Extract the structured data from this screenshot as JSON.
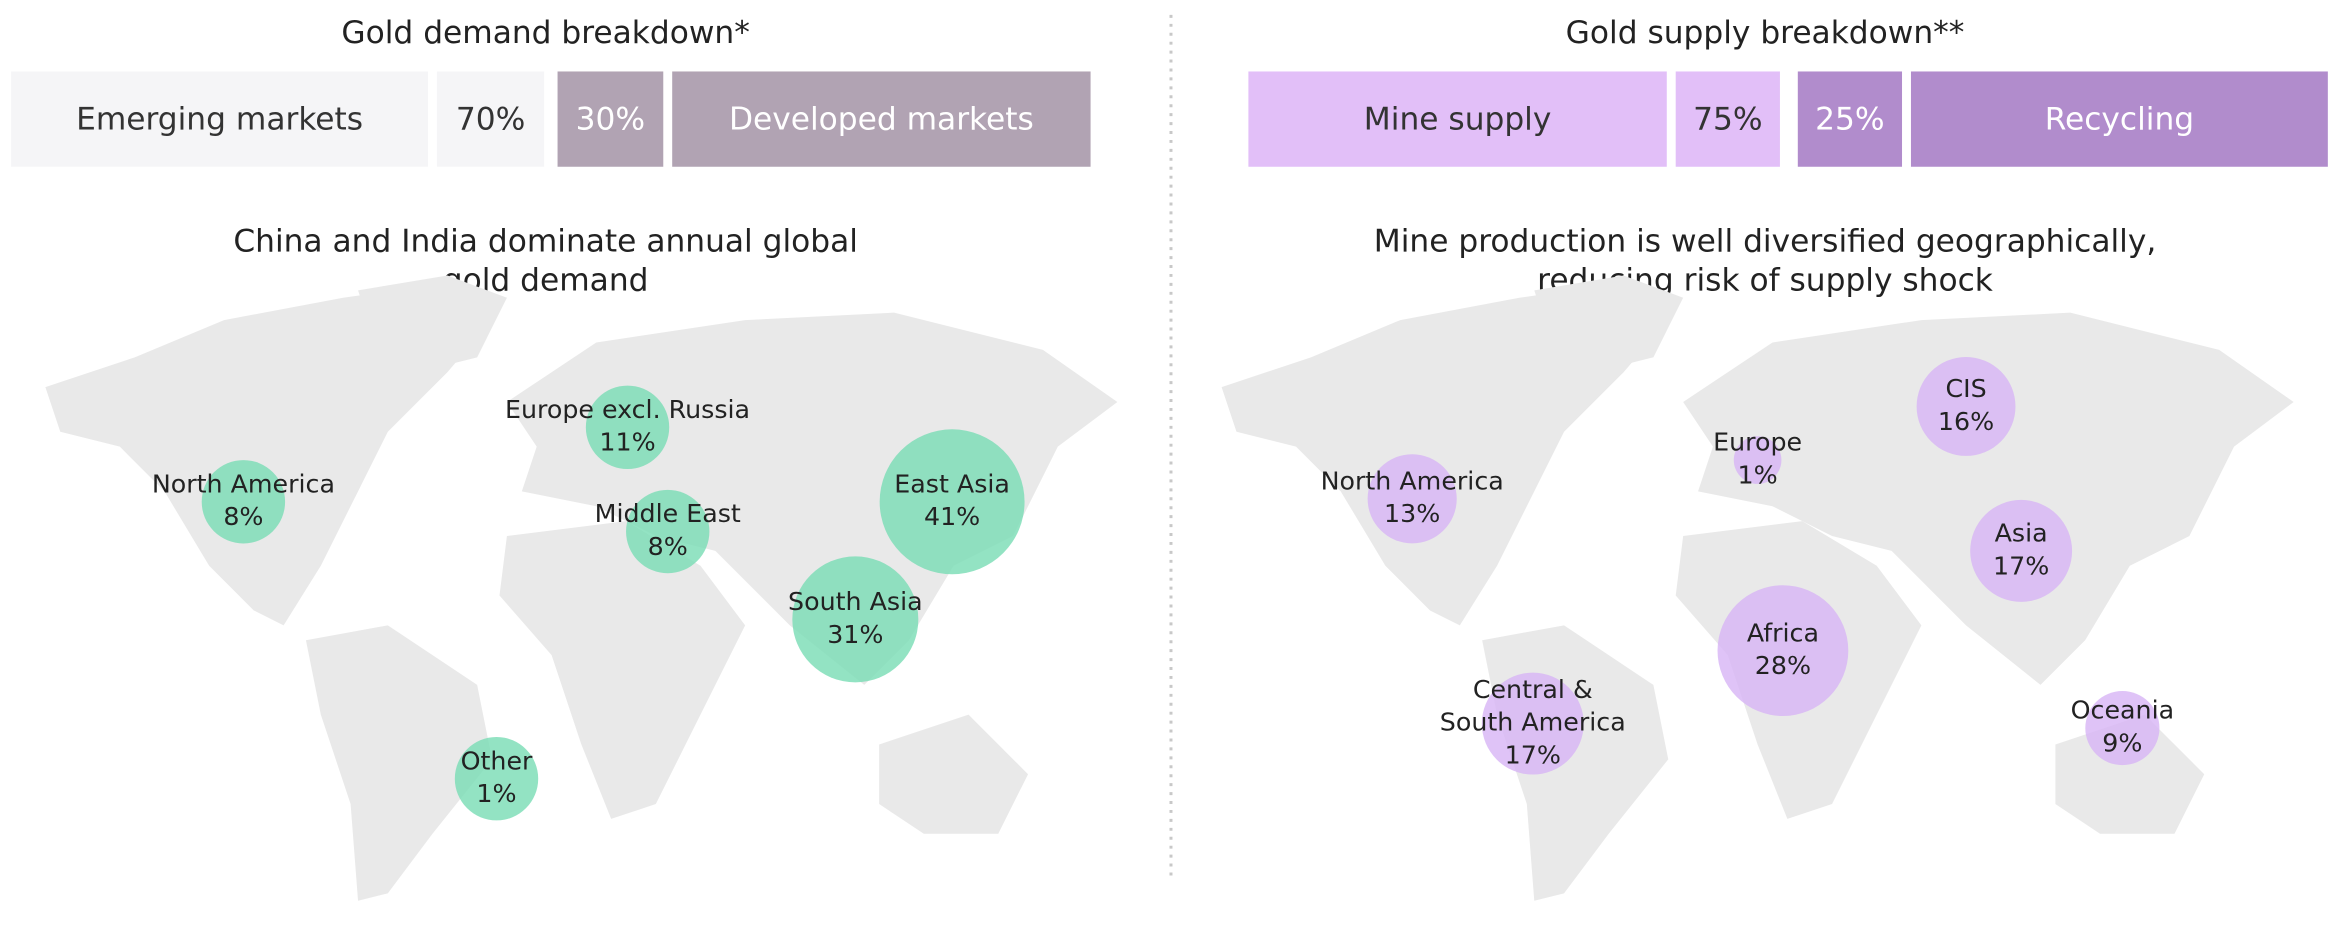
{
  "demand": {
    "title": "Gold demand breakdown*",
    "bar": [
      {
        "label": "Emerging markets",
        "share": "70%"
      },
      {
        "label": "Developed markets",
        "share": "30%"
      }
    ],
    "map_title": "China and India dominate annual global gold demand",
    "regions": [
      {
        "name": "North America",
        "value": 8,
        "value_label": "8%"
      },
      {
        "name": "Europe excl. Russia",
        "value": 11,
        "value_label": "11%"
      },
      {
        "name": "Middle East",
        "value": 8,
        "value_label": "8%"
      },
      {
        "name": "East Asia",
        "value": 41,
        "value_label": "41%"
      },
      {
        "name": "South Asia",
        "value": 31,
        "value_label": "31%"
      },
      {
        "name": "Other",
        "value": 1,
        "value_label": "1%"
      }
    ]
  },
  "supply": {
    "title": "Gold supply breakdown**",
    "bar": [
      {
        "label": "Mine supply",
        "share": "75%"
      },
      {
        "label": "Recycling",
        "share": "25%"
      }
    ],
    "map_title": "Mine production is well diversified geographically, reducing risk of supply shock",
    "regions": [
      {
        "name": "North America",
        "value": 13,
        "value_label": "13%"
      },
      {
        "name": "Europe",
        "value": 1,
        "value_label": "1%"
      },
      {
        "name": "CIS",
        "value": 16,
        "value_label": "16%"
      },
      {
        "name": "Asia",
        "value": 17,
        "value_label": "17%"
      },
      {
        "name": "Africa",
        "value": 28,
        "value_label": "28%"
      },
      {
        "name": "Central & South America",
        "value": 17,
        "value_label": "17%"
      },
      {
        "name": "Oceania",
        "value": 9,
        "value_label": "9%"
      }
    ]
  }
}
